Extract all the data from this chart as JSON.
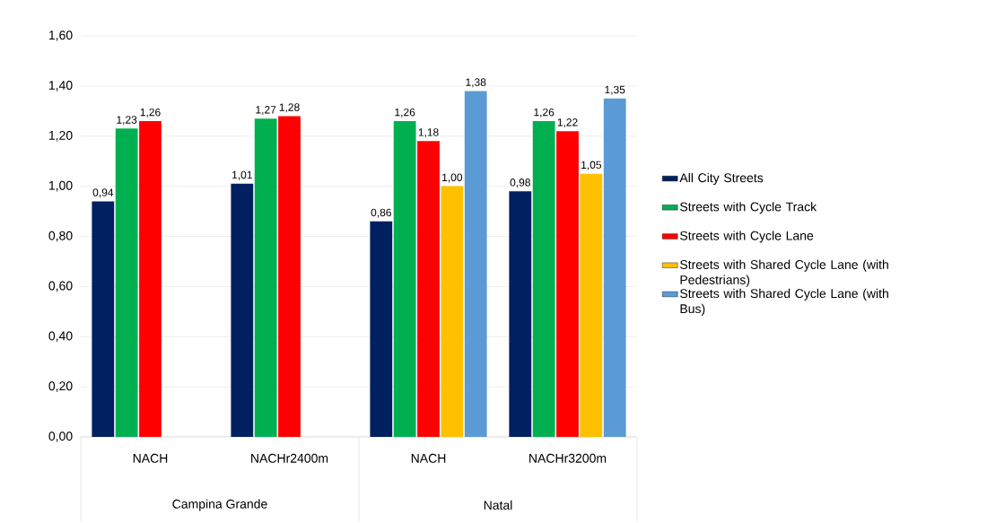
{
  "chart_data": {
    "type": "bar",
    "categories": [
      "NACH",
      "NACHr2400m",
      "NACH",
      "NACHr3200m"
    ],
    "series": [
      {
        "name": "All City Streets",
        "color": "#002060",
        "values": [
          0.94,
          1.01,
          0.86,
          0.98
        ],
        "value_labels": [
          "0,94",
          "1,01",
          "0,86",
          "0,98"
        ]
      },
      {
        "name": "Streets with Cycle Track",
        "color": "#00b050",
        "values": [
          1.23,
          1.27,
          1.26,
          1.26
        ],
        "value_labels": [
          "1,23",
          "1,27",
          "1,26",
          "1,26"
        ]
      },
      {
        "name": "Streets with Cycle Lane",
        "color": "#ff0000",
        "values": [
          1.26,
          1.28,
          1.18,
          1.22
        ],
        "value_labels": [
          "1,26",
          "1,28",
          "1,18",
          "1,22"
        ]
      },
      {
        "name": "Streets with Shared Cycle Lane (with Pedestrians)",
        "color": "#ffc000",
        "values": [
          null,
          null,
          1.0,
          1.05
        ],
        "value_labels": [
          null,
          null,
          "1,00",
          "1,05"
        ]
      },
      {
        "name": "Streets with Shared Cycle Lane (with Bus)",
        "color": "#5b9bd5",
        "values": [
          null,
          null,
          1.38,
          1.35
        ],
        "value_labels": [
          null,
          null,
          "1,38",
          "1,35"
        ]
      }
    ],
    "ylim": [
      0,
      1.6
    ],
    "yticks": [
      {
        "value": 0,
        "label": "0,00"
      },
      {
        "value": 0.2,
        "label": "0,20"
      },
      {
        "value": 0.4,
        "label": "0,40"
      },
      {
        "value": 0.6,
        "label": "0,60"
      },
      {
        "value": 0.8,
        "label": "0,80"
      },
      {
        "value": 1.0,
        "label": "1,00"
      },
      {
        "value": 1.2,
        "label": "1,20"
      },
      {
        "value": 1.4,
        "label": "1,40"
      },
      {
        "value": 1.6,
        "label": "1,60"
      }
    ],
    "grid": "y",
    "legend": "right",
    "annotations": [
      "Campina Grande",
      "Natal"
    ]
  }
}
